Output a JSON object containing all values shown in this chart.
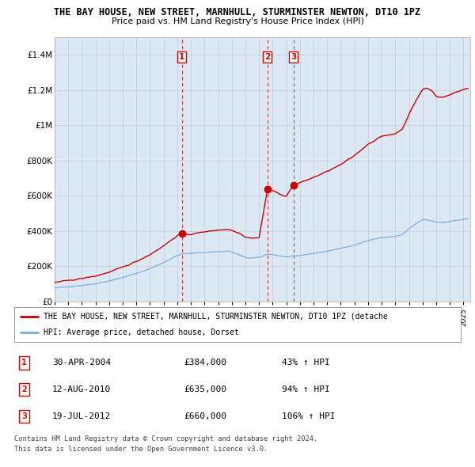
{
  "title": "THE BAY HOUSE, NEW STREET, MARNHULL, STURMINSTER NEWTON, DT10 1PZ",
  "subtitle": "Price paid vs. HM Land Registry's House Price Index (HPI)",
  "ylabel_ticks": [
    "£0",
    "£200K",
    "£400K",
    "£600K",
    "£800K",
    "£1M",
    "£1.2M",
    "£1.4M"
  ],
  "ytick_values": [
    0,
    200000,
    400000,
    600000,
    800000,
    1000000,
    1200000,
    1400000
  ],
  "ylim": [
    0,
    1500000
  ],
  "xlim_start": 1995.0,
  "xlim_end": 2025.5,
  "sales": [
    {
      "num": 1,
      "year": 2004.33,
      "price": 384000,
      "label": "30-APR-2004",
      "pct": "43%"
    },
    {
      "num": 2,
      "year": 2010.62,
      "price": 635000,
      "label": "12-AUG-2010",
      "pct": "94%"
    },
    {
      "num": 3,
      "year": 2012.54,
      "price": 660000,
      "label": "19-JUL-2012",
      "pct": "106%"
    }
  ],
  "legend_line1": "THE BAY HOUSE, NEW STREET, MARNHULL, STURMINSTER NEWTON, DT10 1PZ (detache",
  "legend_line2": "HPI: Average price, detached house, Dorset",
  "footnote1": "Contains HM Land Registry data © Crown copyright and database right 2024.",
  "footnote2": "This data is licensed under the Open Government Licence v3.0.",
  "table_rows": [
    {
      "num": 1,
      "date": "30-APR-2004",
      "price": "£384,000",
      "pct": "43% ↑ HPI"
    },
    {
      "num": 2,
      "date": "12-AUG-2010",
      "price": "£635,000",
      "pct": "94% ↑ HPI"
    },
    {
      "num": 3,
      "date": "19-JUL-2012",
      "price": "£660,000",
      "pct": "106% ↑ HPI"
    }
  ],
  "red_line_color": "#cc0000",
  "blue_line_color": "#7aaddb",
  "chart_bg_color": "#dce9f5",
  "bg_color": "#ffffff",
  "grid_color": "#aaaaaa"
}
